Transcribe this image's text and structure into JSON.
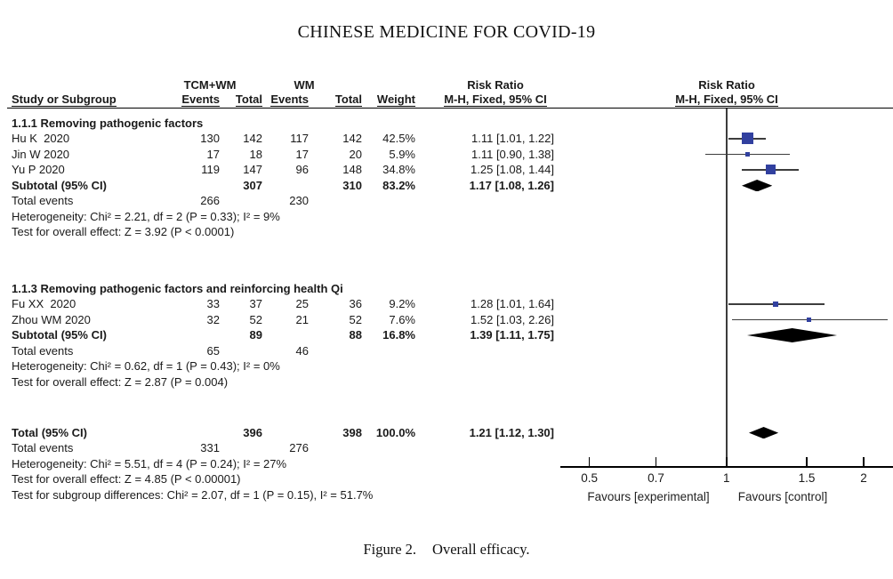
{
  "page_title": "CHINESE MEDICINE FOR COVID-19",
  "caption": {
    "label": "Figure 2.",
    "text": "Overall efficacy."
  },
  "table": {
    "group1_header": "TCM+WM",
    "group2_header": "WM",
    "risk_ratio_header": "Risk Ratio",
    "columns": [
      "Study or Subgroup",
      "Events",
      "Total",
      "Events",
      "Total",
      "Weight",
      "M-H, Fixed, 95% CI"
    ],
    "plot_ci_header": "M-H, Fixed, 95% CI"
  },
  "chart_data": {
    "type": "forest",
    "effect_measure": "Risk Ratio",
    "method": "M-H, Fixed, 95% CI",
    "x_scale": "log",
    "x_ticks": [
      0.5,
      0.7,
      1,
      1.5,
      2
    ],
    "x_axis_labels": {
      "left": "Favours [experimental]",
      "right": "Favours [control]"
    },
    "marker_color": "#31409F",
    "line_color": "#3d3d3d",
    "sections": [
      {
        "heading": "1.1.1 Removing pathogenic factors",
        "studies": [
          {
            "name": "Hu K  2020",
            "events_t": 130,
            "total_t": 142,
            "events_c": 117,
            "total_c": 142,
            "weight": "42.5%",
            "rr": 1.11,
            "ci_low": 1.01,
            "ci_high": 1.22,
            "label": "1.11 [1.01, 1.22]"
          },
          {
            "name": "Jin W 2020",
            "events_t": 17,
            "total_t": 18,
            "events_c": 17,
            "total_c": 20,
            "weight": "5.9%",
            "rr": 1.11,
            "ci_low": 0.9,
            "ci_high": 1.38,
            "label": "1.11 [0.90, 1.38]"
          },
          {
            "name": "Yu P 2020",
            "events_t": 119,
            "total_t": 147,
            "events_c": 96,
            "total_c": 148,
            "weight": "34.8%",
            "rr": 1.25,
            "ci_low": 1.08,
            "ci_high": 1.44,
            "label": "1.25 [1.08, 1.44]"
          }
        ],
        "subtotal": {
          "name": "Subtotal (95% CI)",
          "total_t": 307,
          "total_c": 310,
          "weight": "83.2%",
          "rr": 1.17,
          "ci_low": 1.08,
          "ci_high": 1.26,
          "label": "1.17 [1.08, 1.26]"
        },
        "total_events": {
          "label": "Total events",
          "t": 266,
          "c": 230
        },
        "heterogeneity": "Heterogeneity: Chi² = 2.21, df = 2 (P = 0.33); I² = 9%",
        "overall_effect": "Test for overall effect: Z = 3.92 (P < 0.0001)"
      },
      {
        "heading": "1.1.3 Removing pathogenic factors and reinforcing health Qi",
        "studies": [
          {
            "name": "Fu XX  2020",
            "events_t": 33,
            "total_t": 37,
            "events_c": 25,
            "total_c": 36,
            "weight": "9.2%",
            "rr": 1.28,
            "ci_low": 1.01,
            "ci_high": 1.64,
            "label": "1.28 [1.01, 1.64]"
          },
          {
            "name": "Zhou WM 2020",
            "events_t": 32,
            "total_t": 52,
            "events_c": 21,
            "total_c": 52,
            "weight": "7.6%",
            "rr": 1.52,
            "ci_low": 1.03,
            "ci_high": 2.26,
            "label": "1.52 [1.03, 2.26]"
          }
        ],
        "subtotal": {
          "name": "Subtotal (95% CI)",
          "total_t": 89,
          "total_c": 88,
          "weight": "16.8%",
          "rr": 1.39,
          "ci_low": 1.11,
          "ci_high": 1.75,
          "label": "1.39 [1.11, 1.75]"
        },
        "total_events": {
          "label": "Total events",
          "t": 65,
          "c": 46
        },
        "heterogeneity": "Heterogeneity: Chi² = 0.62, df = 1 (P = 0.43); I² = 0%",
        "overall_effect": "Test for overall effect: Z = 2.87 (P = 0.004)"
      }
    ],
    "total": {
      "name": "Total (95% CI)",
      "total_t": 396,
      "total_c": 398,
      "weight": "100.0%",
      "rr": 1.21,
      "ci_low": 1.12,
      "ci_high": 1.3,
      "label": "1.21 [1.12, 1.30]"
    },
    "total_events": {
      "label": "Total events",
      "t": 331,
      "c": 276
    },
    "heterogeneity": "Heterogeneity: Chi² = 5.51, df = 4 (P = 0.24); I² = 27%",
    "overall_effect": "Test for overall effect: Z = 4.85 (P < 0.00001)",
    "subgroup_differences": "Test for subgroup differences: Chi² = 2.07, df = 1 (P = 0.15), I² = 51.7%"
  }
}
